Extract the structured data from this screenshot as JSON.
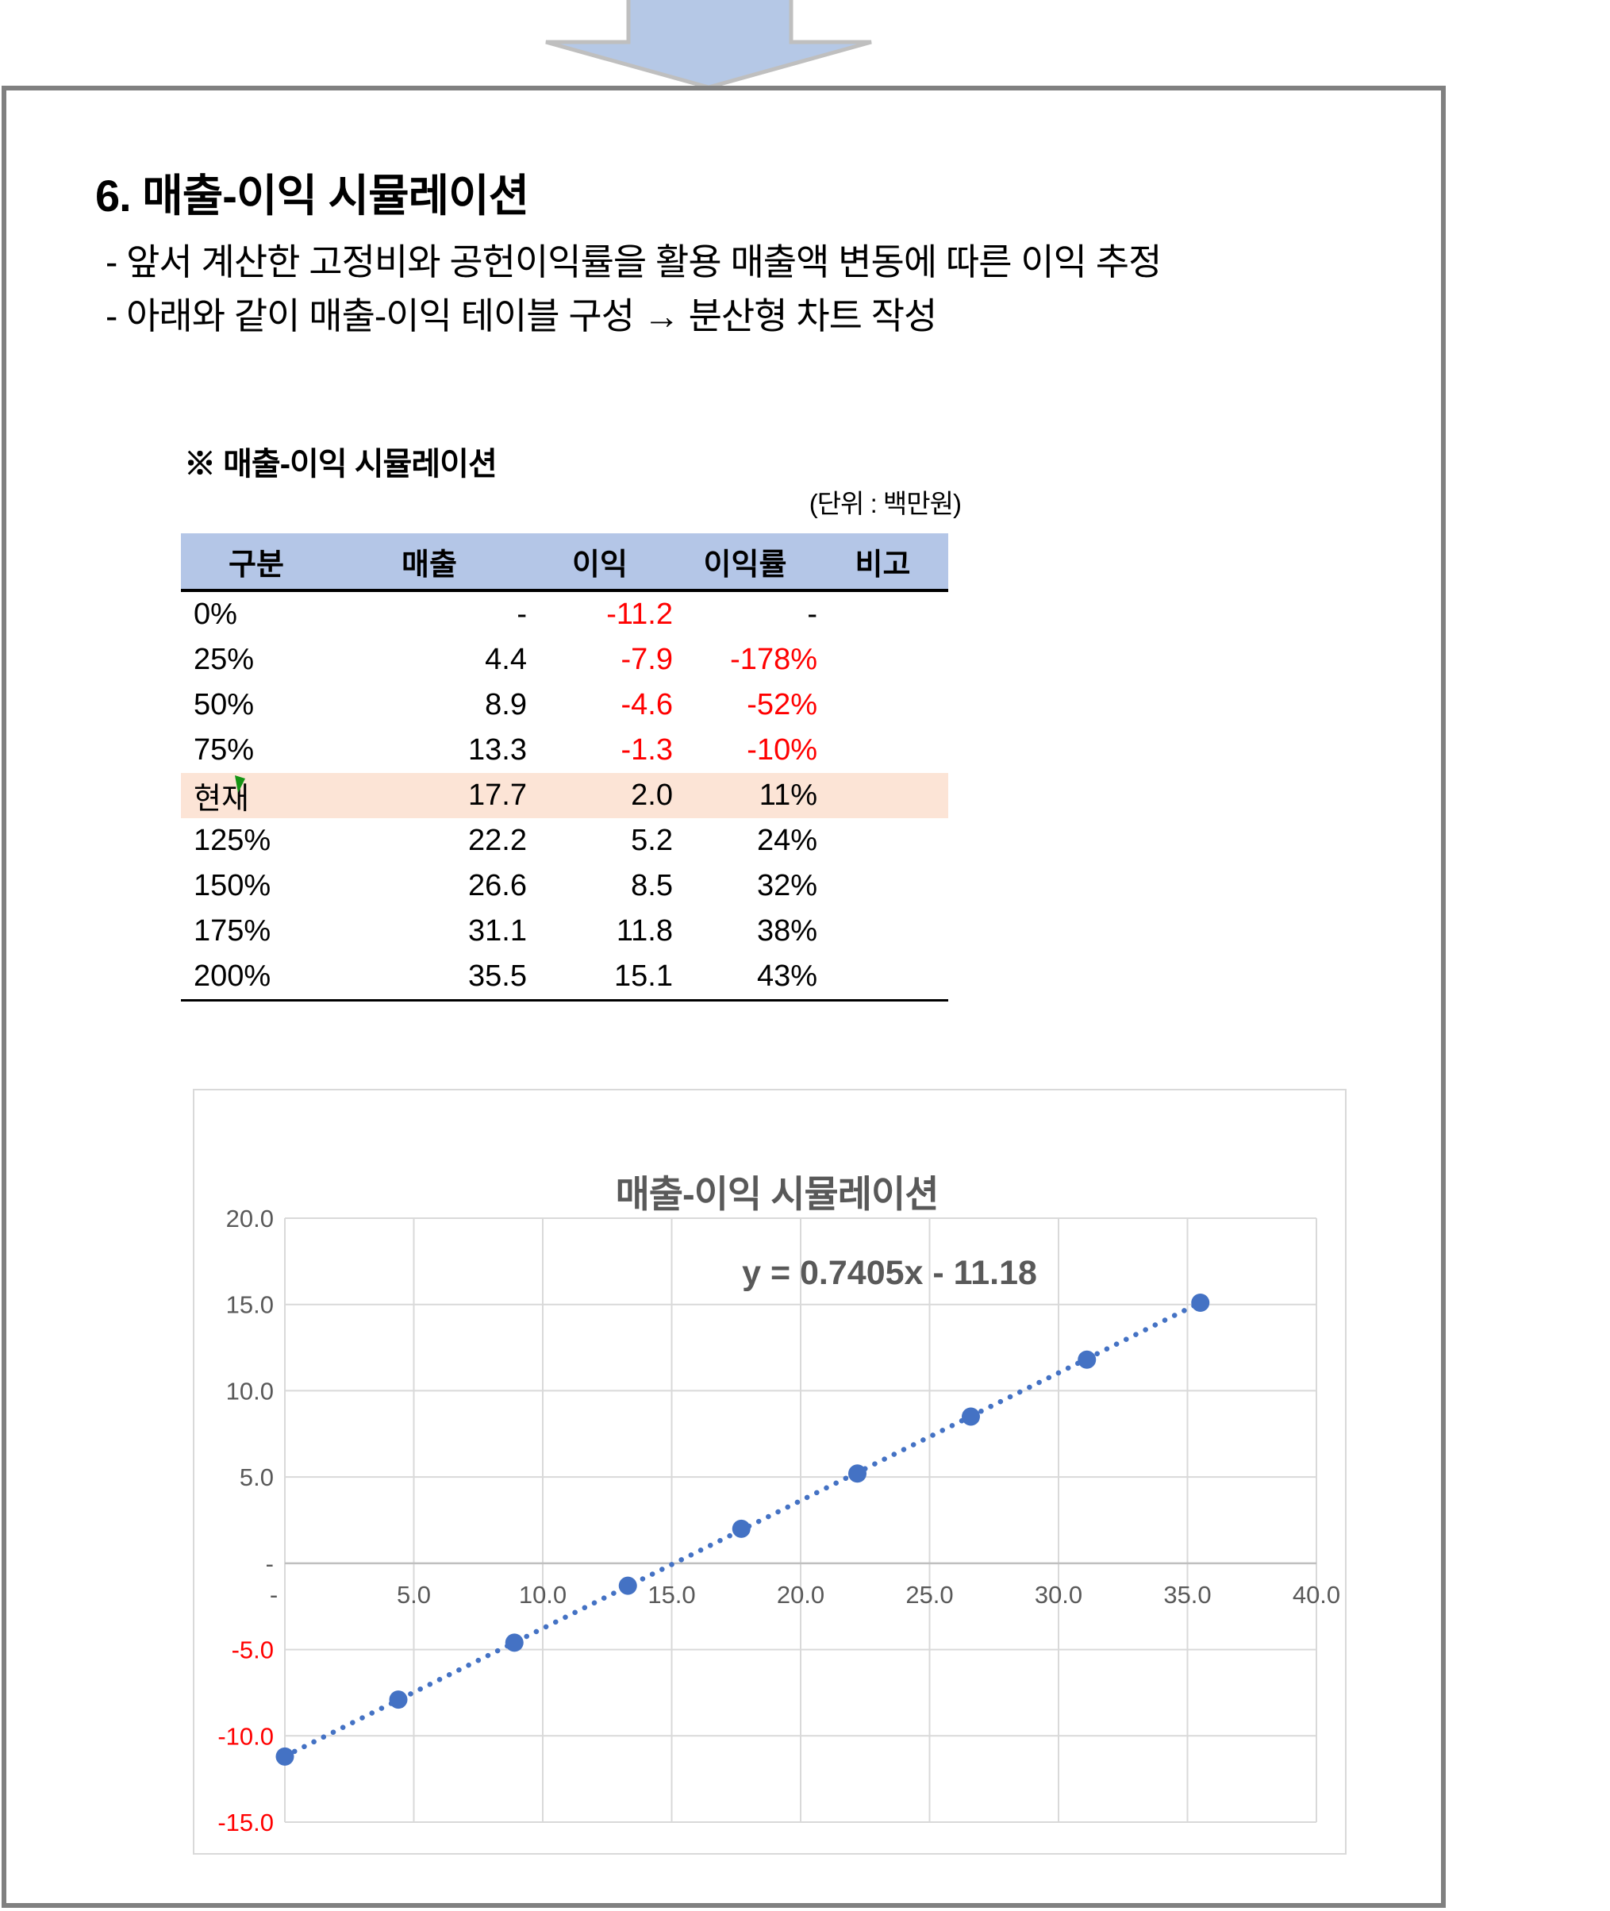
{
  "doc": {
    "title": "6. 매출-이익 시뮬레이션",
    "bullets": [
      "- 앞서 계산한 고정비와 공헌이익률을 활용 매출액 변동에 따른 이익 추정",
      "- 아래와 같이 매출-이익 테이블 구성 → 분산형 차트 작성"
    ]
  },
  "table_section": {
    "label": "※ 매출-이익 시뮬레이션",
    "unit_note": "(단위 : 백만원)",
    "columns": [
      "구분",
      "매출",
      "이익",
      "이익률",
      "비고"
    ],
    "rows": [
      {
        "cells": [
          "0%",
          "-",
          "-11.2",
          "-",
          ""
        ],
        "highlight": false
      },
      {
        "cells": [
          "25%",
          "4.4",
          "-7.9",
          "-178%",
          ""
        ],
        "highlight": false
      },
      {
        "cells": [
          "50%",
          "8.9",
          "-4.6",
          "-52%",
          ""
        ],
        "highlight": false
      },
      {
        "cells": [
          "75%",
          "13.3",
          "-1.3",
          "-10%",
          ""
        ],
        "highlight": false
      },
      {
        "cells": [
          "현재",
          "17.7",
          "2.0",
          "11%",
          ""
        ],
        "highlight": true
      },
      {
        "cells": [
          "125%",
          "22.2",
          "5.2",
          "24%",
          ""
        ],
        "highlight": false
      },
      {
        "cells": [
          "150%",
          "26.6",
          "8.5",
          "32%",
          ""
        ],
        "highlight": false
      },
      {
        "cells": [
          "175%",
          "31.1",
          "11.8",
          "38%",
          ""
        ],
        "highlight": false
      },
      {
        "cells": [
          "200%",
          "35.5",
          "15.1",
          "43%",
          ""
        ],
        "highlight": false
      }
    ]
  },
  "chart_data": {
    "type": "scatter",
    "title": "매출-이익 시뮬레이션",
    "annotation": "y = 0.7405x - 11.18",
    "points": [
      {
        "x": 0.0,
        "y": -11.2
      },
      {
        "x": 4.4,
        "y": -7.9
      },
      {
        "x": 8.9,
        "y": -4.6
      },
      {
        "x": 13.3,
        "y": -1.3
      },
      {
        "x": 17.7,
        "y": 2.0
      },
      {
        "x": 22.2,
        "y": 5.2
      },
      {
        "x": 26.6,
        "y": 8.5
      },
      {
        "x": 31.1,
        "y": 11.8
      },
      {
        "x": 35.5,
        "y": 15.1
      }
    ],
    "trendline": {
      "slope": 0.7405,
      "intercept": -11.18,
      "x_start": 0,
      "x_end": 35.5,
      "style": "dotted"
    },
    "xlim": [
      0,
      40
    ],
    "ylim": [
      -15,
      20
    ],
    "x_ticks": {
      "values": [
        0,
        5,
        10,
        15,
        20,
        25,
        30,
        35,
        40
      ],
      "labels": [
        "-",
        "5.0",
        "10.0",
        "15.0",
        "20.0",
        "25.0",
        "30.0",
        "35.0",
        "40.0"
      ]
    },
    "y_ticks": {
      "values": [
        20,
        15,
        10,
        5,
        0,
        -5,
        -10,
        -15
      ],
      "labels": [
        "20.0",
        "15.0",
        "10.0",
        "5.0",
        "-",
        "-5.0",
        "-10.0",
        "-15.0"
      ]
    },
    "grid": true,
    "legend": "none"
  },
  "colors": {
    "marker_blue": "#4472C4",
    "trendline_blue": "#4472C4",
    "negative_red": "#FF0000",
    "chart_text_gray": "#595959",
    "gridline": "#D9D9D9",
    "axis_line": "#BFBFBF",
    "table_header_bg": "#B4C6E7",
    "highlight_row_bg": "#FCE4D6",
    "page_border": "#808080",
    "arrow_fill": "#B5C8E6",
    "arrow_stroke": "#BFBFBF",
    "comment_flag_green": "#149414"
  }
}
